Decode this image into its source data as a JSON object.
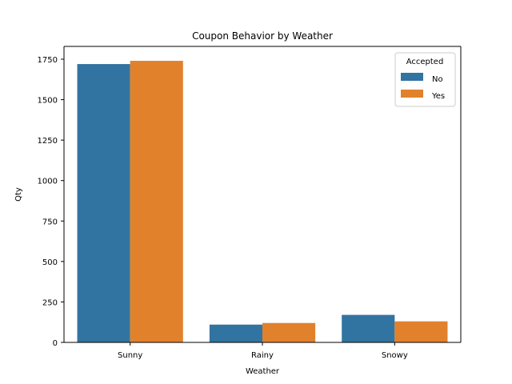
{
  "chart_data": {
    "type": "bar",
    "title": "Coupon Behavior by Weather",
    "xlabel": "Weather",
    "ylabel": "Qty",
    "categories": [
      "Sunny",
      "Rainy",
      "Snowy"
    ],
    "series": [
      {
        "name": "No",
        "color": "#3274a1",
        "values": [
          1720,
          110,
          170
        ]
      },
      {
        "name": "Yes",
        "color": "#e1812c",
        "values": [
          1740,
          120,
          130
        ]
      }
    ],
    "ylim": [
      0,
      1800
    ],
    "yticks": [
      0,
      250,
      500,
      750,
      1000,
      1250,
      1500,
      1750
    ],
    "legend": {
      "title": "Accepted",
      "placement": "top-right"
    },
    "grid": false
  }
}
